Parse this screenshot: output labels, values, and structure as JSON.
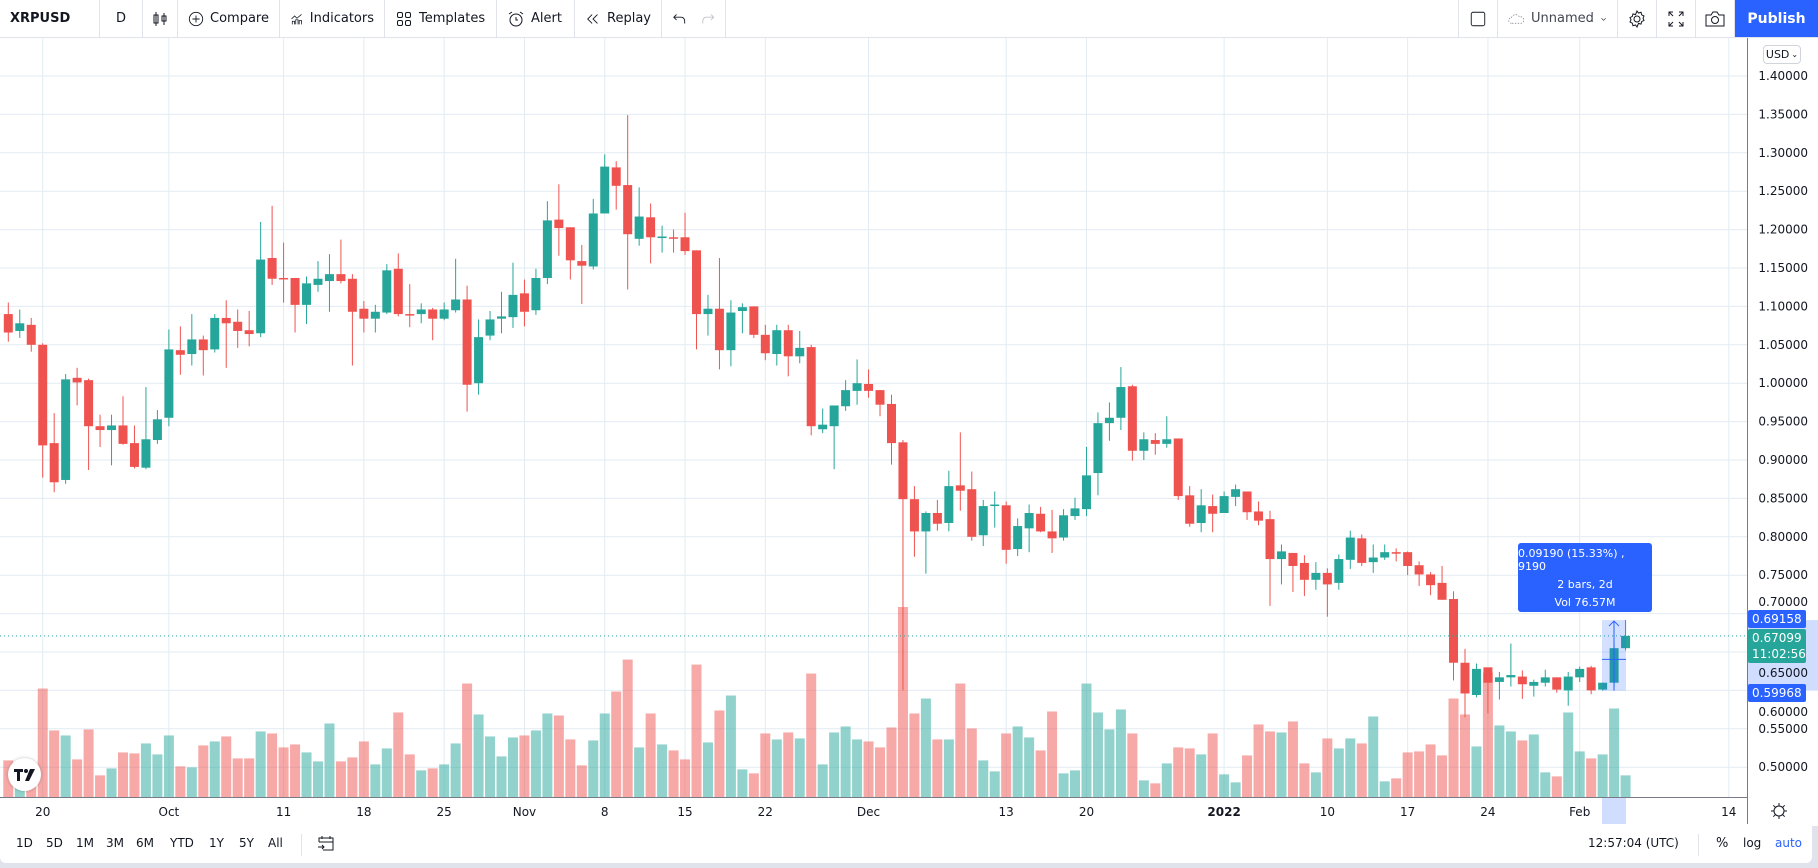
{
  "toolbar": {
    "symbol": "XRPUSD",
    "interval": "D",
    "compare": "Compare",
    "indicators": "Indicators",
    "templates": "Templates",
    "alert": "Alert",
    "replay": "Replay",
    "layout_name": "Unnamed",
    "publish": "Publish"
  },
  "price_axis": {
    "currency": "USD",
    "ticks": [
      "1.40000",
      "1.35000",
      "1.30000",
      "1.25000",
      "1.20000",
      "1.15000",
      "1.10000",
      "1.05000",
      "1.00000",
      "0.95000",
      "0.90000",
      "0.85000",
      "0.80000",
      "0.75000",
      "0.70000",
      "0.65000",
      "0.60000",
      "0.55000",
      "0.50000"
    ],
    "measure_high_label": "0.69158",
    "last_price_label": "0.67099",
    "countdown": "11:02:56",
    "measure_low_label": "0.59968"
  },
  "time_axis": {
    "ticks": [
      "20",
      "Oct",
      "11",
      "18",
      "25",
      "Nov",
      "8",
      "15",
      "22",
      "Dec",
      "13",
      "20",
      "2022",
      "10",
      "17",
      "24",
      "Feb",
      "14"
    ]
  },
  "measure": {
    "line1": "0.09190 (15.33%) , 9190",
    "line2": "2 bars, 2d",
    "line3": "Vol 76.57M"
  },
  "bottom_bar": {
    "ranges": [
      "1D",
      "5D",
      "1M",
      "3M",
      "6M",
      "YTD",
      "1Y",
      "5Y",
      "All"
    ],
    "clock": "12:57:04 (UTC)",
    "percent": "%",
    "log": "log",
    "auto": "auto"
  },
  "colors": {
    "up": "#26a69a",
    "down": "#ef5350",
    "accent": "#2962ff",
    "grid": "#e1ecf2"
  },
  "chart_data": {
    "type": "candlestick",
    "symbol": "XRPUSD",
    "interval": "D",
    "ylim": [
      0.475,
      1.425
    ],
    "grid": true,
    "ohlc": [
      [
        1.09,
        1.105,
        1.054,
        1.066
      ],
      [
        1.068,
        1.096,
        1.059,
        1.078
      ],
      [
        1.076,
        1.085,
        1.041,
        1.05
      ],
      [
        1.05,
        1.052,
        0.877,
        0.919
      ],
      [
        0.922,
        0.961,
        0.858,
        0.871
      ],
      [
        0.874,
        1.012,
        0.869,
        1.005
      ],
      [
        1.007,
        1.02,
        0.971,
        1.001
      ],
      [
        1.004,
        1.006,
        0.887,
        0.944
      ],
      [
        0.944,
        0.959,
        0.917,
        0.939
      ],
      [
        0.939,
        0.959,
        0.893,
        0.945
      ],
      [
        0.945,
        0.983,
        0.92,
        0.921
      ],
      [
        0.922,
        0.945,
        0.889,
        0.891
      ],
      [
        0.89,
        0.995,
        0.888,
        0.927
      ],
      [
        0.926,
        0.965,
        0.921,
        0.953
      ],
      [
        0.955,
        1.07,
        0.944,
        1.044
      ],
      [
        1.043,
        1.074,
        1.011,
        1.037
      ],
      [
        1.038,
        1.09,
        1.023,
        1.057
      ],
      [
        1.057,
        1.062,
        1.01,
        1.043
      ],
      [
        1.044,
        1.09,
        1.04,
        1.085
      ],
      [
        1.085,
        1.108,
        1.02,
        1.078
      ],
      [
        1.08,
        1.096,
        1.046,
        1.068
      ],
      [
        1.069,
        1.094,
        1.048,
        1.064
      ],
      [
        1.065,
        1.21,
        1.06,
        1.161
      ],
      [
        1.163,
        1.231,
        1.128,
        1.136
      ],
      [
        1.137,
        1.183,
        1.105,
        1.136
      ],
      [
        1.137,
        1.137,
        1.066,
        1.102
      ],
      [
        1.102,
        1.139,
        1.077,
        1.13
      ],
      [
        1.128,
        1.159,
        1.119,
        1.136
      ],
      [
        1.133,
        1.168,
        1.093,
        1.142
      ],
      [
        1.142,
        1.187,
        1.13,
        1.133
      ],
      [
        1.136,
        1.142,
        1.023,
        1.093
      ],
      [
        1.097,
        1.107,
        1.066,
        1.084
      ],
      [
        1.084,
        1.102,
        1.066,
        1.093
      ],
      [
        1.092,
        1.155,
        1.09,
        1.147
      ],
      [
        1.149,
        1.169,
        1.087,
        1.09
      ],
      [
        1.09,
        1.129,
        1.073,
        1.089
      ],
      [
        1.09,
        1.104,
        1.078,
        1.096
      ],
      [
        1.096,
        1.098,
        1.056,
        1.084
      ],
      [
        1.084,
        1.105,
        1.082,
        1.096
      ],
      [
        1.095,
        1.162,
        1.092,
        1.109
      ],
      [
        1.109,
        1.127,
        0.963,
        0.998
      ],
      [
        1.0,
        1.083,
        0.985,
        1.06
      ],
      [
        1.062,
        1.094,
        1.056,
        1.083
      ],
      [
        1.084,
        1.119,
        1.065,
        1.087
      ],
      [
        1.086,
        1.157,
        1.072,
        1.115
      ],
      [
        1.117,
        1.135,
        1.074,
        1.093
      ],
      [
        1.095,
        1.149,
        1.089,
        1.137
      ],
      [
        1.137,
        1.237,
        1.129,
        1.212
      ],
      [
        1.213,
        1.259,
        1.166,
        1.202
      ],
      [
        1.203,
        1.203,
        1.135,
        1.16
      ],
      [
        1.159,
        1.18,
        1.103,
        1.153
      ],
      [
        1.152,
        1.24,
        1.148,
        1.221
      ],
      [
        1.221,
        1.298,
        1.221,
        1.282
      ],
      [
        1.281,
        1.289,
        1.226,
        1.257
      ],
      [
        1.258,
        1.349,
        1.122,
        1.194
      ],
      [
        1.188,
        1.255,
        1.179,
        1.217
      ],
      [
        1.216,
        1.234,
        1.156,
        1.19
      ],
      [
        1.189,
        1.205,
        1.17,
        1.191
      ],
      [
        1.19,
        1.2,
        1.17,
        1.189
      ],
      [
        1.19,
        1.222,
        1.167,
        1.172
      ],
      [
        1.173,
        1.173,
        1.044,
        1.09
      ],
      [
        1.09,
        1.115,
        1.062,
        1.097
      ],
      [
        1.097,
        1.163,
        1.018,
        1.043
      ],
      [
        1.043,
        1.108,
        1.022,
        1.092
      ],
      [
        1.094,
        1.104,
        1.065,
        1.099
      ],
      [
        1.1,
        1.1,
        1.059,
        1.063
      ],
      [
        1.063,
        1.076,
        1.03,
        1.039
      ],
      [
        1.038,
        1.076,
        1.023,
        1.069
      ],
      [
        1.069,
        1.076,
        1.009,
        1.035
      ],
      [
        1.035,
        1.068,
        1.026,
        1.046
      ],
      [
        1.047,
        1.05,
        0.932,
        0.944
      ],
      [
        0.94,
        0.967,
        0.935,
        0.946
      ],
      [
        0.944,
        0.971,
        0.888,
        0.971
      ],
      [
        0.97,
        1.004,
        0.964,
        0.991
      ],
      [
        0.99,
        1.031,
        0.972,
        1.0
      ],
      [
        0.999,
        1.018,
        0.981,
        0.99
      ],
      [
        0.991,
        0.991,
        0.957,
        0.972
      ],
      [
        0.973,
        0.985,
        0.894,
        0.922
      ],
      [
        0.923,
        0.926,
        0.6,
        0.849
      ],
      [
        0.849,
        0.866,
        0.774,
        0.807
      ],
      [
        0.807,
        0.833,
        0.752,
        0.831
      ],
      [
        0.831,
        0.848,
        0.808,
        0.817
      ],
      [
        0.818,
        0.886,
        0.807,
        0.866
      ],
      [
        0.867,
        0.936,
        0.834,
        0.86
      ],
      [
        0.862,
        0.885,
        0.795,
        0.8
      ],
      [
        0.802,
        0.848,
        0.788,
        0.84
      ],
      [
        0.841,
        0.859,
        0.812,
        0.842
      ],
      [
        0.841,
        0.846,
        0.765,
        0.783
      ],
      [
        0.784,
        0.824,
        0.775,
        0.814
      ],
      [
        0.811,
        0.842,
        0.78,
        0.831
      ],
      [
        0.83,
        0.839,
        0.806,
        0.807
      ],
      [
        0.807,
        0.835,
        0.779,
        0.798
      ],
      [
        0.799,
        0.836,
        0.795,
        0.828
      ],
      [
        0.827,
        0.851,
        0.822,
        0.837
      ],
      [
        0.836,
        0.917,
        0.827,
        0.88
      ],
      [
        0.883,
        0.962,
        0.854,
        0.948
      ],
      [
        0.948,
        0.975,
        0.925,
        0.955
      ],
      [
        0.955,
        1.021,
        0.939,
        0.995
      ],
      [
        0.996,
        0.998,
        0.899,
        0.912
      ],
      [
        0.912,
        0.936,
        0.9,
        0.927
      ],
      [
        0.926,
        0.935,
        0.907,
        0.921
      ],
      [
        0.921,
        0.957,
        0.916,
        0.927
      ],
      [
        0.928,
        0.928,
        0.848,
        0.853
      ],
      [
        0.854,
        0.866,
        0.813,
        0.817
      ],
      [
        0.818,
        0.862,
        0.806,
        0.841
      ],
      [
        0.84,
        0.855,
        0.806,
        0.83
      ],
      [
        0.831,
        0.859,
        0.831,
        0.853
      ],
      [
        0.852,
        0.868,
        0.84,
        0.862
      ],
      [
        0.859,
        0.859,
        0.822,
        0.832
      ],
      [
        0.833,
        0.846,
        0.815,
        0.821
      ],
      [
        0.823,
        0.834,
        0.71,
        0.771
      ],
      [
        0.771,
        0.79,
        0.738,
        0.781
      ],
      [
        0.779,
        0.779,
        0.728,
        0.762
      ],
      [
        0.766,
        0.776,
        0.723,
        0.744
      ],
      [
        0.744,
        0.767,
        0.731,
        0.753
      ],
      [
        0.753,
        0.759,
        0.696,
        0.738
      ],
      [
        0.74,
        0.777,
        0.731,
        0.771
      ],
      [
        0.77,
        0.808,
        0.758,
        0.799
      ],
      [
        0.798,
        0.803,
        0.762,
        0.766
      ],
      [
        0.767,
        0.79,
        0.753,
        0.773
      ],
      [
        0.773,
        0.79,
        0.77,
        0.78
      ],
      [
        0.78,
        0.785,
        0.768,
        0.778
      ],
      [
        0.78,
        0.781,
        0.75,
        0.762
      ],
      [
        0.763,
        0.768,
        0.736,
        0.751
      ],
      [
        0.751,
        0.754,
        0.724,
        0.737
      ],
      [
        0.74,
        0.762,
        0.718,
        0.718
      ],
      [
        0.719,
        0.729,
        0.613,
        0.636
      ],
      [
        0.636,
        0.654,
        0.565,
        0.596
      ],
      [
        0.594,
        0.635,
        0.591,
        0.628
      ],
      [
        0.63,
        0.63,
        0.57,
        0.61
      ],
      [
        0.611,
        0.624,
        0.588,
        0.617
      ],
      [
        0.617,
        0.661,
        0.605,
        0.62
      ],
      [
        0.618,
        0.626,
        0.589,
        0.608
      ],
      [
        0.606,
        0.614,
        0.592,
        0.611
      ],
      [
        0.61,
        0.627,
        0.605,
        0.617
      ],
      [
        0.617,
        0.617,
        0.597,
        0.601
      ],
      [
        0.6,
        0.624,
        0.58,
        0.618
      ],
      [
        0.617,
        0.631,
        0.611,
        0.628
      ],
      [
        0.63,
        0.632,
        0.595,
        0.6
      ],
      [
        0.601,
        0.61,
        0.5997,
        0.61
      ],
      [
        0.61,
        0.66,
        0.605,
        0.655
      ],
      [
        0.655,
        0.6916,
        0.652,
        0.671
      ]
    ],
    "volume_relative": [
      110,
      40,
      50,
      326,
      200,
      185,
      113,
      203,
      65,
      86,
      134,
      131,
      161,
      128,
      185,
      92,
      89,
      155,
      167,
      182,
      116,
      116,
      197,
      191,
      149,
      158,
      134,
      107,
      221,
      107,
      119,
      167,
      98,
      146,
      254,
      128,
      80,
      86,
      98,
      161,
      341,
      248,
      182,
      122,
      179,
      185,
      200,
      251,
      245,
      173,
      95,
      170,
      251,
      317,
      413,
      149,
      251,
      158,
      140,
      113,
      398,
      164,
      260,
      305,
      83,
      71,
      191,
      173,
      194,
      176,
      371,
      98,
      194,
      212,
      173,
      167,
      149,
      209,
      571,
      251,
      296,
      173,
      173,
      341,
      206,
      110,
      77,
      191,
      212,
      179,
      140,
      257,
      71,
      80,
      341,
      254,
      203,
      263,
      191,
      50,
      41,
      101,
      149,
      146,
      128,
      191,
      68,
      44,
      125,
      218,
      197,
      194,
      227,
      101,
      74,
      176,
      146,
      176,
      161,
      242,
      47,
      56,
      134,
      137,
      158,
      125,
      296,
      248,
      152,
      374,
      215,
      197,
      170,
      188,
      74,
      62,
      254,
      137,
      116,
      128,
      266,
      65
    ],
    "last_price": 0.67099,
    "measure_range": [
      0.59968,
      0.69158
    ]
  }
}
